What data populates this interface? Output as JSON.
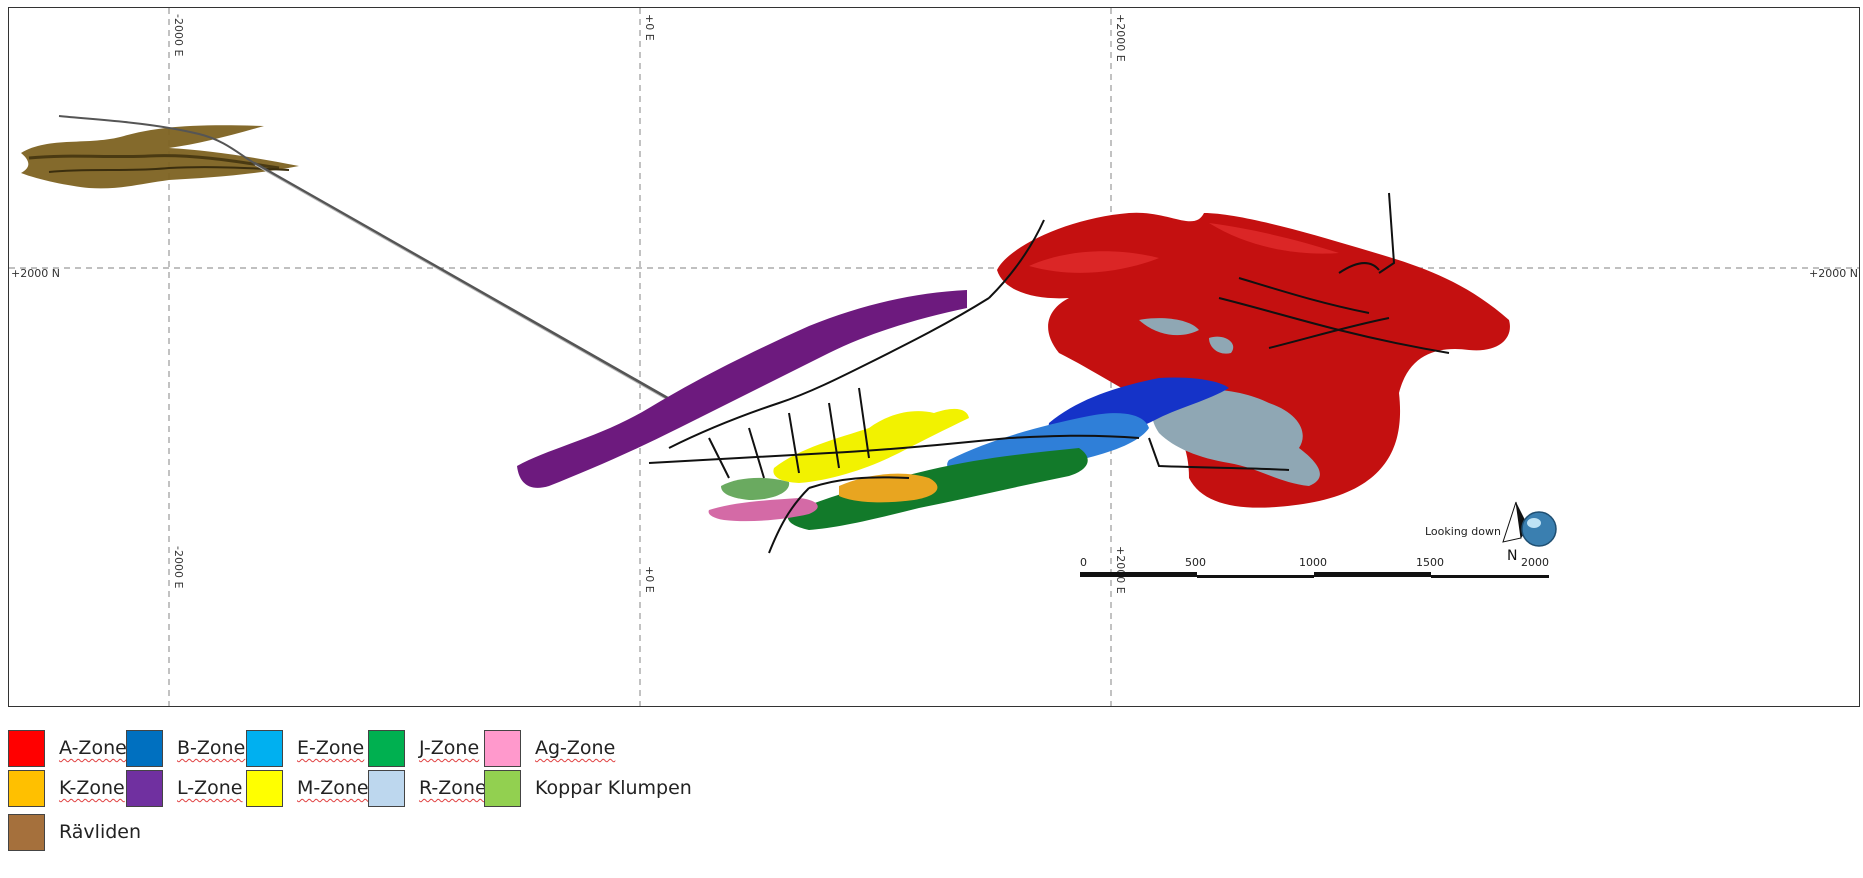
{
  "map": {
    "grid": {
      "easting_top": [
        "-2000 E",
        "+0 E",
        "+2000 E"
      ],
      "easting_bottom": [
        "-2000 E",
        "+0 E",
        "+2000 E"
      ],
      "northing": [
        "+2000 N",
        "+2000 N"
      ]
    },
    "scale_bar": {
      "ticks": [
        "0",
        "500",
        "1000",
        "1500",
        "2000"
      ]
    },
    "view": {
      "label": "Looking down",
      "north_label": "N"
    }
  },
  "legend": {
    "items": [
      {
        "label": "A-Zone",
        "color": "#ff0000"
      },
      {
        "label": "B-Zone",
        "color": "#0070c0"
      },
      {
        "label": "E-Zone",
        "color": "#00b0f0"
      },
      {
        "label": "J-Zone",
        "color": "#00b050"
      },
      {
        "label": "Ag-Zone",
        "color": "#ff99cc"
      },
      {
        "label": "K-Zone",
        "color": "#ffc000"
      },
      {
        "label": "L-Zone",
        "color": "#7030a0"
      },
      {
        "label": "M-Zone",
        "color": "#ffff00"
      },
      {
        "label": "R-Zone",
        "color": "#bdd7ee"
      },
      {
        "label": "Koppar Klumpen",
        "color": "#92d050"
      },
      {
        "label": "Rävliden",
        "color": "#a5703c"
      }
    ]
  }
}
